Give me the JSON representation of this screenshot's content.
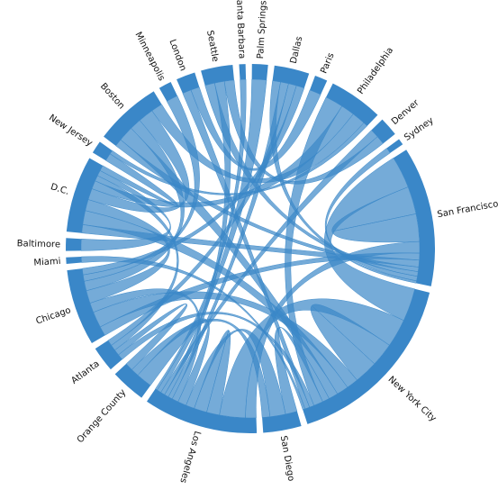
{
  "chart_data": {
    "type": "chord",
    "color": "#3a87c8",
    "groups": [
      {
        "name": "Palm Springs",
        "value": 5
      },
      {
        "name": "Dallas",
        "value": 11
      },
      {
        "name": "Paris",
        "value": 4
      },
      {
        "name": "Philadelphia",
        "value": 17
      },
      {
        "name": "Denver",
        "value": 6
      },
      {
        "name": "Sydney",
        "value": 2
      },
      {
        "name": "San Francisco",
        "value": 44
      },
      {
        "name": "New York City",
        "value": 58
      },
      {
        "name": "San Diego",
        "value": 12
      },
      {
        "name": "Los Angeles",
        "value": 36
      },
      {
        "name": "Orange County",
        "value": 11
      },
      {
        "name": "Atlanta",
        "value": 8
      },
      {
        "name": "Chicago",
        "value": 24
      },
      {
        "name": "Miami",
        "value": 2
      },
      {
        "name": "Baltimore",
        "value": 4
      },
      {
        "name": "D.C.",
        "value": 24
      },
      {
        "name": "New Jersey",
        "value": 4
      },
      {
        "name": "Boston",
        "value": 21
      },
      {
        "name": "Minneapolis",
        "value": 4
      },
      {
        "name": "London",
        "value": 6
      },
      {
        "name": "Seattle",
        "value": 10
      },
      {
        "name": "Santa Barbara",
        "value": 2
      }
    ],
    "links": [
      {
        "source": "San Francisco",
        "target": "New York City",
        "value": 14
      },
      {
        "source": "San Francisco",
        "target": "San Francisco",
        "value": 12
      },
      {
        "source": "San Francisco",
        "target": "Los Angeles",
        "value": 5
      },
      {
        "source": "San Francisco",
        "target": "Chicago",
        "value": 3
      },
      {
        "source": "San Francisco",
        "target": "D.C.",
        "value": 3
      },
      {
        "source": "San Francisco",
        "target": "Boston",
        "value": 2
      },
      {
        "source": "San Francisco",
        "target": "Seattle",
        "value": 2
      },
      {
        "source": "San Francisco",
        "target": "Dallas",
        "value": 2
      },
      {
        "source": "New York City",
        "target": "Los Angeles",
        "value": 12
      },
      {
        "source": "New York City",
        "target": "New York City",
        "value": 10
      },
      {
        "source": "New York City",
        "target": "Chicago",
        "value": 5
      },
      {
        "source": "New York City",
        "target": "D.C.",
        "value": 5
      },
      {
        "source": "New York City",
        "target": "Boston",
        "value": 4
      },
      {
        "source": "New York City",
        "target": "San Diego",
        "value": 3
      },
      {
        "source": "New York City",
        "target": "Philadelphia",
        "value": 4
      },
      {
        "source": "New York City",
        "target": "Atlanta",
        "value": 2
      },
      {
        "source": "New York City",
        "target": "London",
        "value": 2
      },
      {
        "source": "New York City",
        "target": "Miami",
        "value": 1
      },
      {
        "source": "Los Angeles",
        "target": "Los Angeles",
        "value": 6
      },
      {
        "source": "Los Angeles",
        "target": "San Diego",
        "value": 4
      },
      {
        "source": "Los Angeles",
        "target": "Orange County",
        "value": 4
      },
      {
        "source": "Los Angeles",
        "target": "Chicago",
        "value": 3
      },
      {
        "source": "Los Angeles",
        "target": "Dallas",
        "value": 2
      },
      {
        "source": "Los Angeles",
        "target": "Seattle",
        "value": 2
      },
      {
        "source": "Los Angeles",
        "target": "Denver",
        "value": 2
      },
      {
        "source": "Los Angeles",
        "target": "Palm Springs",
        "value": 2
      },
      {
        "source": "San Diego",
        "target": "Orange County",
        "value": 2
      },
      {
        "source": "Orange County",
        "target": "Atlanta",
        "value": 2
      },
      {
        "source": "Chicago",
        "target": "D.C.",
        "value": 4
      },
      {
        "source": "Chicago",
        "target": "Boston",
        "value": 3
      },
      {
        "source": "Chicago",
        "target": "Minneapolis",
        "value": 2
      },
      {
        "source": "D.C.",
        "target": "Boston",
        "value": 4
      },
      {
        "source": "D.C.",
        "target": "Philadelphia",
        "value": 3
      },
      {
        "source": "D.C.",
        "target": "Atlanta",
        "value": 2
      },
      {
        "source": "D.C.",
        "target": "Baltimore",
        "value": 2
      },
      {
        "source": "D.C.",
        "target": "New Jersey",
        "value": 2
      },
      {
        "source": "Boston",
        "target": "Philadelphia",
        "value": 3
      },
      {
        "source": "Paris",
        "target": "London",
        "value": 2
      },
      {
        "source": "Seattle",
        "target": "Denver",
        "value": 2
      },
      {
        "source": "Sydney",
        "target": "San Francisco",
        "value": 1
      },
      {
        "source": "Santa Barbara",
        "target": "Los Angeles",
        "value": 1
      },
      {
        "source": "New Jersey",
        "target": "Philadelphia",
        "value": 1
      },
      {
        "source": "Dallas",
        "target": "Atlanta",
        "value": 2
      },
      {
        "source": "Dallas",
        "target": "Chicago",
        "value": 2
      }
    ]
  }
}
